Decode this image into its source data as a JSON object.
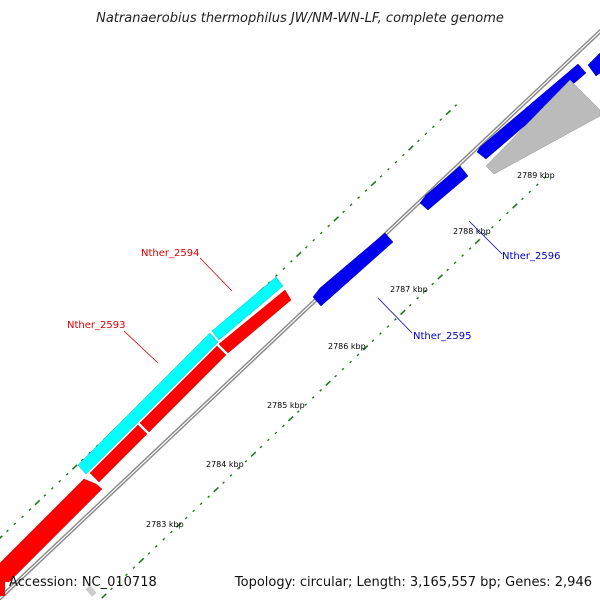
{
  "title": "Natranaerobius thermophilus JW/NM-WN-LF, complete genome",
  "footer": {
    "accession": "Accession: NC_010718",
    "summary": "Topology: circular; Length: 3,165,557 bp; Genes: 2,946"
  },
  "colors": {
    "backbone": "#888888",
    "tick": "#1a7a1a",
    "gene_red": "#ff0000",
    "gene_cyan": "#00ffff",
    "gene_blue": "#0000ee",
    "gene_gray": "#bbbbbb",
    "label_red": "#dd0000",
    "label_blue": "#0000cc"
  },
  "ticks": [
    {
      "label": "2783 kbp"
    },
    {
      "label": "2784 kbp"
    },
    {
      "label": "2785 kbp"
    },
    {
      "label": "2786 kbp"
    },
    {
      "label": "2787 kbp"
    },
    {
      "label": "2788 kbp"
    },
    {
      "label": "2789 kbp"
    }
  ],
  "genes": [
    {
      "label": "Nther_2593",
      "strand": "+",
      "color": "#ff0000"
    },
    {
      "label": "Nther_2594",
      "strand": "+",
      "color": "#ff0000"
    },
    {
      "label": "Nther_2595",
      "strand": "-",
      "color": "#0000ee"
    },
    {
      "label": "Nther_2596",
      "strand": "-",
      "color": "#0000ee"
    }
  ]
}
